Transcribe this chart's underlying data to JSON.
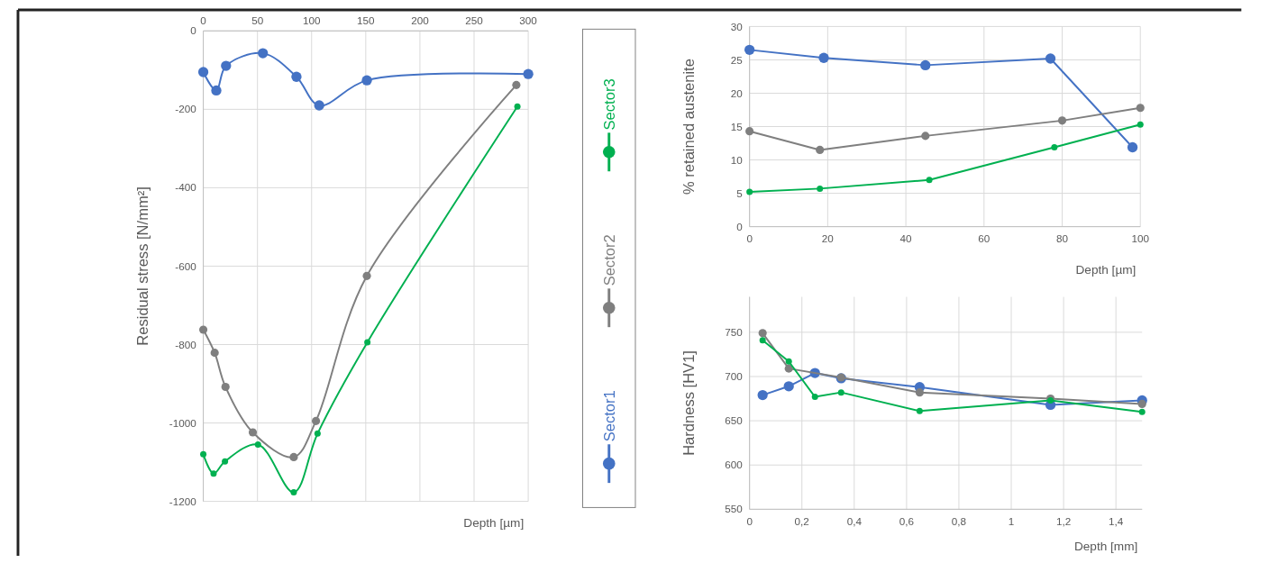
{
  "chart_data": [
    {
      "type": "line",
      "xlabel": "Depth [µm]",
      "ylabel": "Residual stress [N/mm²]",
      "xlim": [
        0,
        300
      ],
      "xticks": [
        0,
        50,
        100,
        150,
        200,
        250,
        300
      ],
      "ylim": [
        -1200,
        0
      ],
      "yticks": [
        -1200,
        -1000,
        -800,
        -600,
        -400,
        -200,
        0
      ],
      "grid": true,
      "marker": "circle",
      "legend": "right",
      "series": [
        {
          "name": "Sector1",
          "color": "#4472c4",
          "x": [
            0,
            12,
            21,
            55,
            86,
            107,
            151,
            300
          ],
          "values": [
            -105,
            -152,
            -89,
            -57,
            -117,
            -190,
            -126,
            -110
          ]
        },
        {
          "name": "Sector2",
          "color": "#7f7f7f",
          "x": [
            0,
            10.5,
            20.5,
            45.7,
            83.5,
            104,
            151,
            289
          ],
          "values": [
            -762,
            -821,
            -908,
            -1024,
            -1087,
            -995,
            -625,
            -138
          ]
        },
        {
          "name": "Sector3",
          "color": "#00b050",
          "x": [
            0,
            9.5,
            20,
            50.5,
            83.5,
            105.5,
            151.5,
            290
          ],
          "values": [
            -1080,
            -1129,
            -1098,
            -1055,
            -1177,
            -1027,
            -794,
            -193
          ]
        }
      ]
    },
    {
      "type": "line",
      "xlabel": "Depth [µm]",
      "ylabel": "% retained austenite",
      "xlim": [
        0,
        100
      ],
      "xticks": [
        0,
        20,
        40,
        60,
        80,
        100
      ],
      "ylim": [
        0,
        30
      ],
      "yticks": [
        0,
        5,
        10,
        15,
        20,
        25,
        30
      ],
      "grid": true,
      "marker": "circle",
      "series": [
        {
          "color": "#4472c4",
          "x": [
            0,
            19,
            45,
            77,
            98
          ],
          "values": [
            26.5,
            25.3,
            24.2,
            25.2,
            11.9
          ]
        },
        {
          "color": "#7f7f7f",
          "x": [
            0,
            18,
            45,
            80,
            100
          ],
          "values": [
            14.3,
            11.5,
            13.6,
            15.9,
            17.8
          ]
        },
        {
          "color": "#00b050",
          "x": [
            0,
            18,
            46,
            78,
            100
          ],
          "values": [
            5.2,
            5.7,
            7.0,
            11.9,
            15.3
          ]
        }
      ]
    },
    {
      "type": "line",
      "xlabel": "Depth [mm]",
      "ylabel": "Hardness  [HV1]",
      "xlim": [
        0,
        1.5
      ],
      "xticks": [
        0,
        {
          "value": 0.2,
          "label": "0,2"
        },
        {
          "value": 0.4,
          "label": "0,4"
        },
        {
          "value": 0.6,
          "label": "0,6"
        },
        {
          "value": 0.8,
          "label": "0,8"
        },
        1,
        {
          "value": 1.2,
          "label": "1,2"
        },
        {
          "value": 1.4,
          "label": "1,4"
        }
      ],
      "ylim": [
        550,
        790
      ],
      "yticks": [
        550,
        600,
        650,
        700,
        750
      ],
      "grid": true,
      "marker": "circle",
      "series": [
        {
          "color": "#4472c4",
          "x": [
            0.05,
            0.15,
            0.25,
            0.35,
            0.65,
            1.15,
            1.5
          ],
          "values": [
            679,
            689,
            704,
            698,
            688,
            668,
            673
          ]
        },
        {
          "color": "#7f7f7f",
          "x": [
            0.05,
            0.15,
            0.35,
            0.65,
            1.15,
            1.5
          ],
          "values": [
            749,
            709,
            699,
            682,
            675,
            669
          ]
        },
        {
          "color": "#00b050",
          "x": [
            0.05,
            0.15,
            0.25,
            0.35,
            0.65,
            1.15,
            1.5
          ],
          "values": [
            741,
            717,
            677,
            682,
            661,
            673,
            660
          ]
        }
      ]
    }
  ]
}
